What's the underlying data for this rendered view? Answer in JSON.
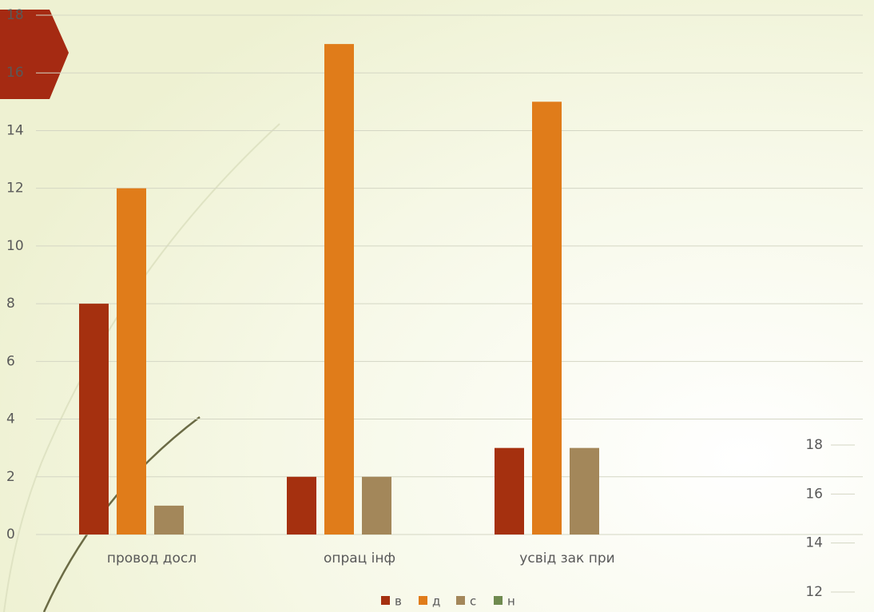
{
  "chart_data": [
    {
      "type": "bar",
      "categories": [
        "провод досл",
        "опрац інф",
        "усвід зак при"
      ],
      "series": [
        {
          "name": "в",
          "color": "#a5300f",
          "values": [
            8,
            2,
            3
          ]
        },
        {
          "name": "д",
          "color": "#e07c1a",
          "values": [
            12,
            17,
            15
          ]
        },
        {
          "name": "с",
          "color": "#a3875a",
          "values": [
            1,
            2,
            3
          ]
        },
        {
          "name": "н",
          "color": "#6f8a4f",
          "values": [
            0,
            0,
            0
          ]
        }
      ],
      "ylim": [
        0,
        18
      ],
      "yticks": [
        0,
        2,
        4,
        6,
        8,
        10,
        12,
        14,
        16,
        18
      ],
      "grid": true,
      "legend": "bottom"
    },
    {
      "type": "bar",
      "ylim": [
        12,
        18
      ],
      "yticks": [
        12,
        14,
        16,
        18
      ]
    }
  ]
}
